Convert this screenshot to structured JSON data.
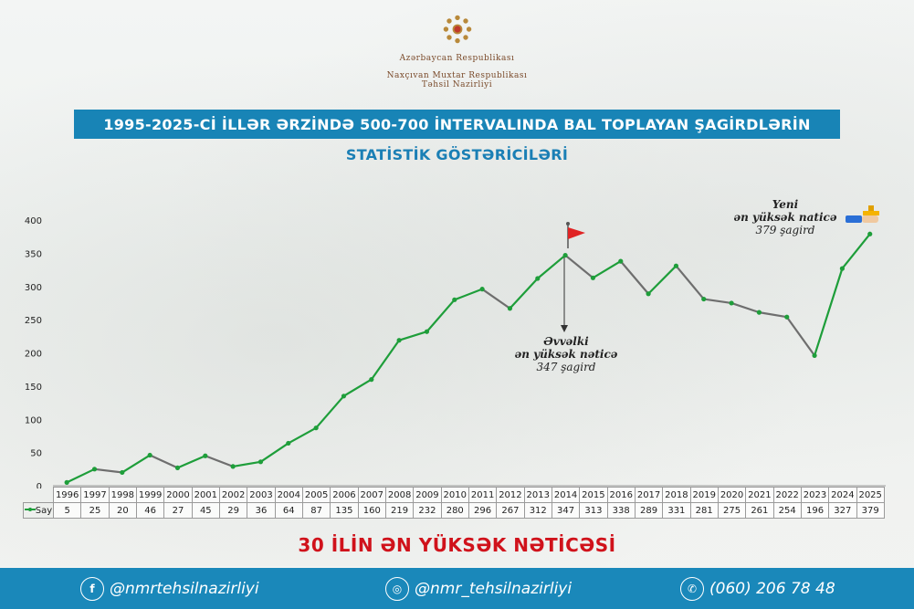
{
  "header": {
    "org_line1": "Azərbaycan Respublikası",
    "org_line2": "Naxçıvan Muxtar Respublikası",
    "org_line3": "Təhsil Nazirliyi"
  },
  "title": "1995-2025-Cİ İLLƏR ƏRZİNDƏ 500-700 İNTERVALINDA BAL TOPLAYAN ŞAGİRDLƏRİN",
  "subtitle": "STATİSTİK GÖSTƏRİCİLƏRİ",
  "annotations": {
    "previous": {
      "line1": "Əvvəlki",
      "line2": "ən yüksək nəticə",
      "line3": "347 şagird"
    },
    "new": {
      "line1": "Yeni",
      "line2": "ən yüksək naticə",
      "line3": "379 şagird"
    }
  },
  "bottom_title": "30 İLİN ƏN YÜKSƏK NƏTİCƏSİ",
  "footer": {
    "facebook": "@nmrtehsilnazirliyi",
    "instagram": "@nmr_tehsilnazirliyi",
    "phone": "(060) 206 78 48"
  },
  "colors": {
    "up": "#1e9e3a",
    "down": "#6e6e6e",
    "title_bg": "#1884b6",
    "accent_red": "#d0121b",
    "footer_bg": "#1a88ba"
  },
  "chart_data": {
    "type": "line",
    "categories": [
      "1996",
      "1997",
      "1998",
      "1999",
      "2000",
      "2001",
      "2002",
      "2003",
      "2004",
      "2005",
      "2006",
      "2007",
      "2008",
      "2009",
      "2010",
      "2011",
      "2012",
      "2013",
      "2014",
      "2015",
      "2016",
      "2017",
      "2018",
      "2019",
      "2020",
      "2021",
      "2022",
      "2023",
      "2024",
      "2025"
    ],
    "series": [
      {
        "name": "Say",
        "values": [
          5,
          25,
          20,
          46,
          27,
          45,
          29,
          36,
          64,
          87,
          135,
          160,
          219,
          232,
          280,
          296,
          267,
          312,
          347,
          313,
          338,
          289,
          331,
          281,
          275,
          261,
          254,
          196,
          327,
          379
        ]
      }
    ],
    "ylim": [
      0,
      400
    ],
    "yticks": [
      0,
      50,
      100,
      150,
      200,
      250,
      300,
      350,
      400
    ],
    "grid": false,
    "legend": "table-left"
  }
}
